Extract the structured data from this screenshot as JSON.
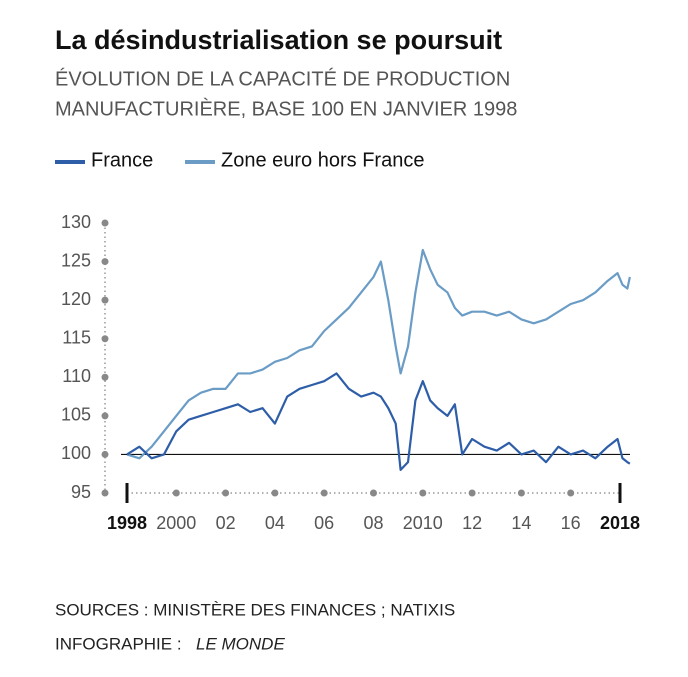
{
  "chart_data": {
    "type": "line",
    "title": "La désindustrialisation se poursuit",
    "subtitle": [
      "ÉVOLUTION DE LA CAPACITÉ DE PRODUCTION",
      "MANUFACTURIÈRE, BASE 100 EN JANVIER 1998"
    ],
    "x": [
      1998,
      1998.5,
      1999,
      1999.5,
      2000,
      2000.5,
      2001,
      2001.5,
      2002,
      2002.5,
      2003,
      2003.5,
      2004,
      2004.5,
      2005,
      2005.5,
      2006,
      2006.5,
      2007,
      2007.5,
      2008,
      2008.3,
      2008.6,
      2008.9,
      2009.1,
      2009.4,
      2009.7,
      2010,
      2010.3,
      2010.6,
      2011,
      2011.3,
      2011.6,
      2012,
      2012.5,
      2013,
      2013.5,
      2014,
      2014.5,
      2015,
      2015.5,
      2016,
      2016.5,
      2017,
      2017.5,
      2017.9,
      2018.1,
      2018.3,
      2018.4
    ],
    "series": [
      {
        "name": "France",
        "color": "#2e5ea8",
        "values": [
          100,
          101,
          99.5,
          100,
          103,
          104.5,
          105,
          105.5,
          106,
          106.5,
          105.5,
          106,
          104,
          107.5,
          108.5,
          109,
          109.5,
          110.5,
          108.5,
          107.5,
          108,
          107.5,
          106,
          104,
          98,
          99,
          107,
          109.5,
          107,
          106,
          105,
          106.5,
          100,
          102,
          101,
          100.5,
          101.5,
          100,
          100.5,
          99,
          101,
          100,
          100.5,
          99.5,
          101,
          102,
          99.5,
          99,
          98.8
        ]
      },
      {
        "name": "Zone euro hors France",
        "color": "#6a9cc6",
        "values": [
          100,
          99.5,
          101,
          103,
          105,
          107,
          108,
          108.5,
          108.5,
          110.5,
          110.5,
          111,
          112,
          112.5,
          113.5,
          114,
          116,
          117.5,
          119,
          121,
          123,
          125,
          120,
          114,
          110.5,
          114,
          121,
          126.5,
          124,
          122,
          121,
          119,
          118,
          118.5,
          118.5,
          118,
          118.5,
          117.5,
          117,
          117.5,
          118.5,
          119.5,
          120,
          121,
          122.5,
          123.5,
          122,
          121.5,
          123
        ]
      }
    ],
    "xlim": [
      1998,
      2018
    ],
    "xticks": [
      1998,
      2000,
      {
        "value": 2002,
        "label": "02"
      },
      {
        "value": 2004,
        "label": "04"
      },
      {
        "value": 2006,
        "label": "06"
      },
      {
        "value": 2008,
        "label": "08"
      },
      2010,
      {
        "value": 2012,
        "label": "12"
      },
      {
        "value": 2014,
        "label": "14"
      },
      {
        "value": 2016,
        "label": "16"
      },
      2018
    ],
    "ylim": [
      95,
      130
    ],
    "yticks": [
      95,
      100,
      105,
      110,
      115,
      120,
      125,
      130
    ],
    "baseline": 100,
    "sources": "SOURCES : MINISTÈRE DES FINANCES ; NATIXIS",
    "credit_label": "INFOGRAPHIE :",
    "credit": "LE MONDE"
  }
}
